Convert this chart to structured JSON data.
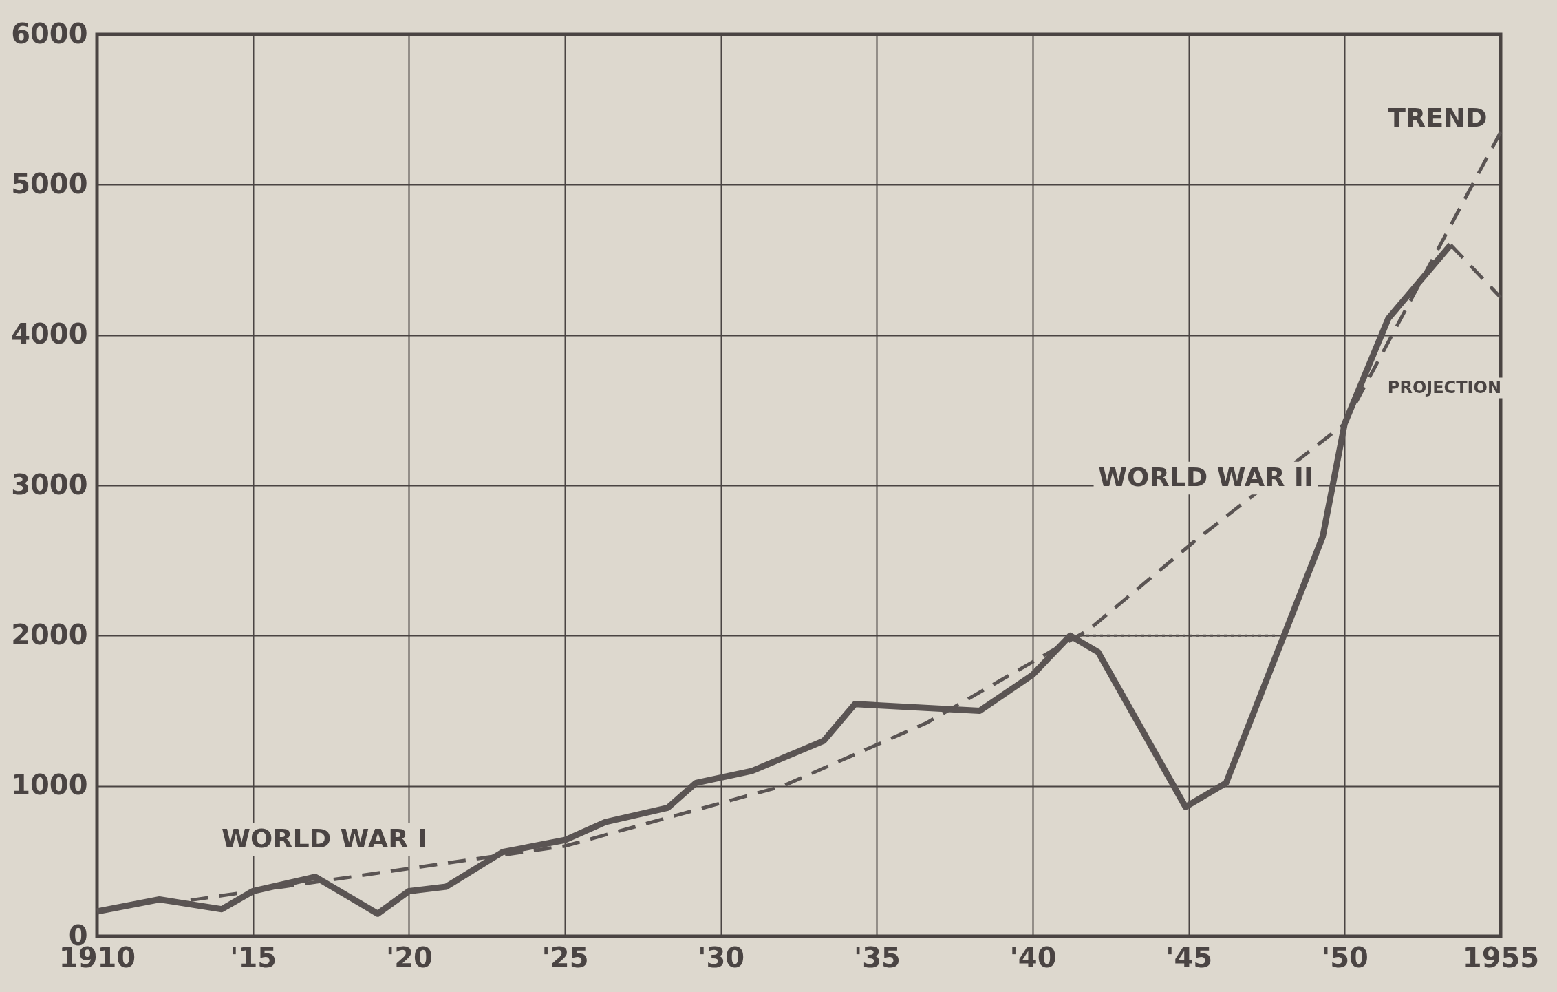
{
  "chart_data": {
    "type": "line",
    "xlim": [
      1910,
      1955
    ],
    "ylim": [
      0,
      6000
    ],
    "xticks": [
      1910,
      {
        "value": 1915,
        "label": "'15"
      },
      {
        "value": 1920,
        "label": "'20"
      },
      {
        "value": 1925,
        "label": "'25"
      },
      {
        "value": 1930,
        "label": "'30"
      },
      {
        "value": 1935,
        "label": "'35"
      },
      {
        "value": 1940,
        "label": "'40"
      },
      {
        "value": 1945,
        "label": "'45"
      },
      {
        "value": 1950,
        "label": "'50"
      },
      1955
    ],
    "yticks": [
      0,
      1000,
      2000,
      3000,
      4000,
      5000,
      6000
    ],
    "grid": true,
    "marker": "none",
    "series": [
      {
        "color": "#5a5453",
        "line_style": "solid",
        "x": [
          1910,
          1912,
          1914,
          1915,
          1917,
          1919,
          1920,
          1921.2,
          1923,
          1925,
          1926.3,
          1928.3,
          1929.2,
          1931,
          1933.3,
          1934.3,
          1938.3,
          1940,
          1941.2,
          1942.1,
          1944.9,
          1946.2,
          1949.3,
          1950,
          1951.4,
          1953.4
        ],
        "values": [
          165,
          245,
          180,
          300,
          395,
          150,
          300,
          330,
          560,
          640,
          760,
          855,
          1020,
          1100,
          1300,
          1545,
          1500,
          1740,
          2000,
          1890,
          860,
          1020,
          2660,
          3410,
          4110,
          4600
        ]
      },
      {
        "color": "#5a5453",
        "line_style": "dashed",
        "x": [
          1913,
          1925,
          1932,
          1936.6,
          1941.8,
          1945.2,
          1950,
          1955
        ],
        "values": [
          240,
          600,
          1000,
          1420,
          2040,
          2630,
          3410,
          5350
        ]
      },
      {
        "color": "#5a5453",
        "line_style": "dashed",
        "x": [
          1953.4,
          1955
        ],
        "values": [
          4600,
          4250
        ]
      },
      {
        "color": "#5a5453",
        "line_style": "dotted",
        "x": [
          1941.5,
          1947.8
        ],
        "values": [
          2000,
          2000
        ]
      }
    ],
    "annotations": [
      "WORLD WAR I",
      "WORLD WAR II",
      "TREND",
      "PROJECTION"
    ]
  }
}
